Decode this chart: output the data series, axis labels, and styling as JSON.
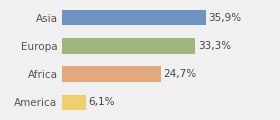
{
  "categories": [
    "Asia",
    "Europa",
    "Africa",
    "America"
  ],
  "values": [
    35.9,
    33.3,
    24.7,
    6.1
  ],
  "labels": [
    "35,9%",
    "33,3%",
    "24,7%",
    "6,1%"
  ],
  "bar_colors": [
    "#7092be",
    "#9db87a",
    "#e2a97e",
    "#f0d06e"
  ],
  "background_color": "#f0f0f0",
  "xlim": [
    0,
    46
  ],
  "label_fontsize": 7.5,
  "tick_fontsize": 7.5,
  "bar_height": 0.55
}
